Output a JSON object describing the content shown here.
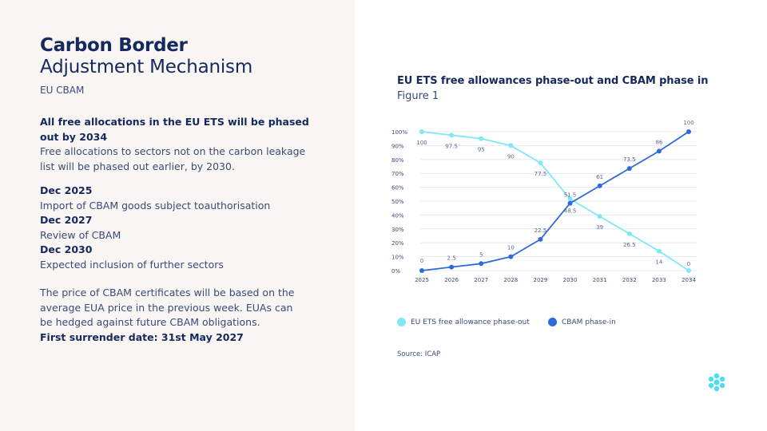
{
  "header": {
    "title_bold": "Carbon Border",
    "title_light": "Adjustment Mechanism",
    "subtitle": "EU CBAM"
  },
  "phase_out": {
    "heading": "All free allocations in the EU ETS will be phased out by 2034",
    "text": "Free allocations to sectors not on the carbon leakage list will be phased out earlier, by 2030."
  },
  "timeline": [
    {
      "date": "Dec 2025",
      "text": "Import of CBAM goods subject toauthorisation"
    },
    {
      "date": "Dec 2027",
      "text": "Review of CBAM"
    },
    {
      "date": "Dec 2030",
      "text": "Expected inclusion of further sectors"
    }
  ],
  "price": {
    "text": "The price of CBAM certificates will be based on the average EUA price in the previous week. EUAs can be hedged against future CBAM obligations.",
    "surrender": "First surrender date: 31st May 2027"
  },
  "figure": {
    "title": "EU ETS free allowances phase-out and CBAM phase in",
    "subtitle": "Figure 1",
    "source": "Source: ICAP"
  },
  "colors": {
    "phase_out": "#7fe8f5",
    "phase_in": "#2f6ad9",
    "grid": "#e6e9f0",
    "text": "#3a4a7a"
  },
  "chart_data": {
    "type": "line",
    "categories": [
      "2025",
      "2026",
      "2027",
      "2028",
      "2029",
      "2030",
      "2031",
      "2032",
      "2033",
      "2034"
    ],
    "y_ticks": [
      "0%",
      "10%",
      "20%",
      "30%",
      "40%",
      "50%",
      "60%",
      "70%",
      "80%",
      "90%",
      "100%"
    ],
    "ylim": [
      0,
      100
    ],
    "legend_position": "bottom",
    "series": [
      {
        "name": "EU ETS free allowance phase-out",
        "values": [
          100,
          97.5,
          95,
          90,
          77.5,
          51.5,
          39,
          26.5,
          14,
          0
        ],
        "labels": [
          "100",
          "97.5",
          "95",
          "90",
          "77.5",
          "51.5",
          "39",
          "26.5",
          "14",
          "0"
        ]
      },
      {
        "name": "CBAM phase-in",
        "values": [
          0,
          2.5,
          5,
          10,
          22.5,
          48.5,
          61,
          73.5,
          86,
          100
        ],
        "labels": [
          "0",
          "2.5",
          "5",
          "10",
          "22.5",
          "48.5",
          "61",
          "73.5",
          "86",
          "100"
        ]
      }
    ]
  }
}
